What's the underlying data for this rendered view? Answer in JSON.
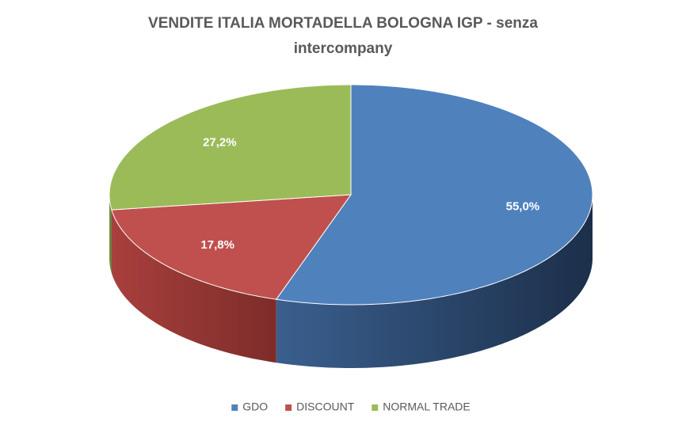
{
  "chart_data": {
    "type": "pie3d",
    "title": "VENDITE ITALIA MORTADELLA BOLOGNA IGP - senza intercompany",
    "categories": [
      "GDO",
      "DISCOUNT",
      "NORMAL TRADE"
    ],
    "values": [
      55.0,
      17.8,
      27.2
    ],
    "value_labels": [
      "55,0%",
      "17,8%",
      "27,2%"
    ],
    "colors": [
      "#4f81bd",
      "#c0504d",
      "#9bbb59"
    ],
    "legend": "bottom"
  }
}
